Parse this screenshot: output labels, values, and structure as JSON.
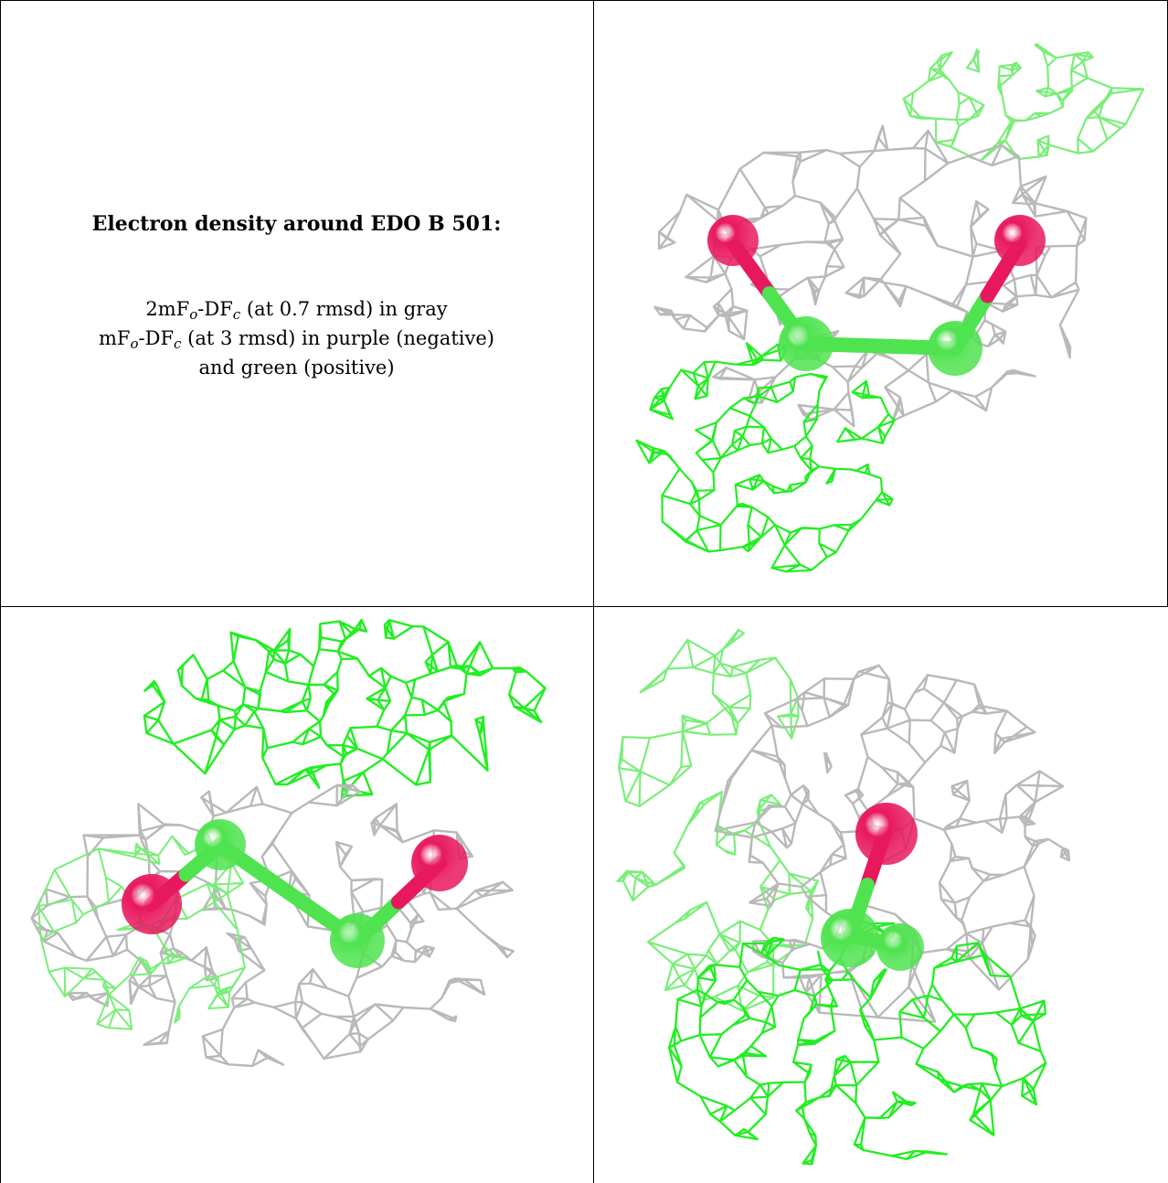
{
  "caption": {
    "title": "Electron density around EDO B 501:",
    "line1": {
      "a": "2mF",
      "sub1": "o",
      "b": "-DF",
      "sub2": "c",
      "rest": " (at 0.7 rmsd) in gray"
    },
    "line2": {
      "a": "mF",
      "sub1": "o",
      "b": "-DF",
      "sub2": "c",
      "rest": " (at 3 rmsd) in purple (negative)"
    },
    "line3": "and green (positive)"
  },
  "colors": {
    "mesh_2fofc": "#b9b9b9",
    "mesh_positive": "#22ee22",
    "atom_oxygen": "#e8185f",
    "atom_carbon": "#4fe34f"
  }
}
